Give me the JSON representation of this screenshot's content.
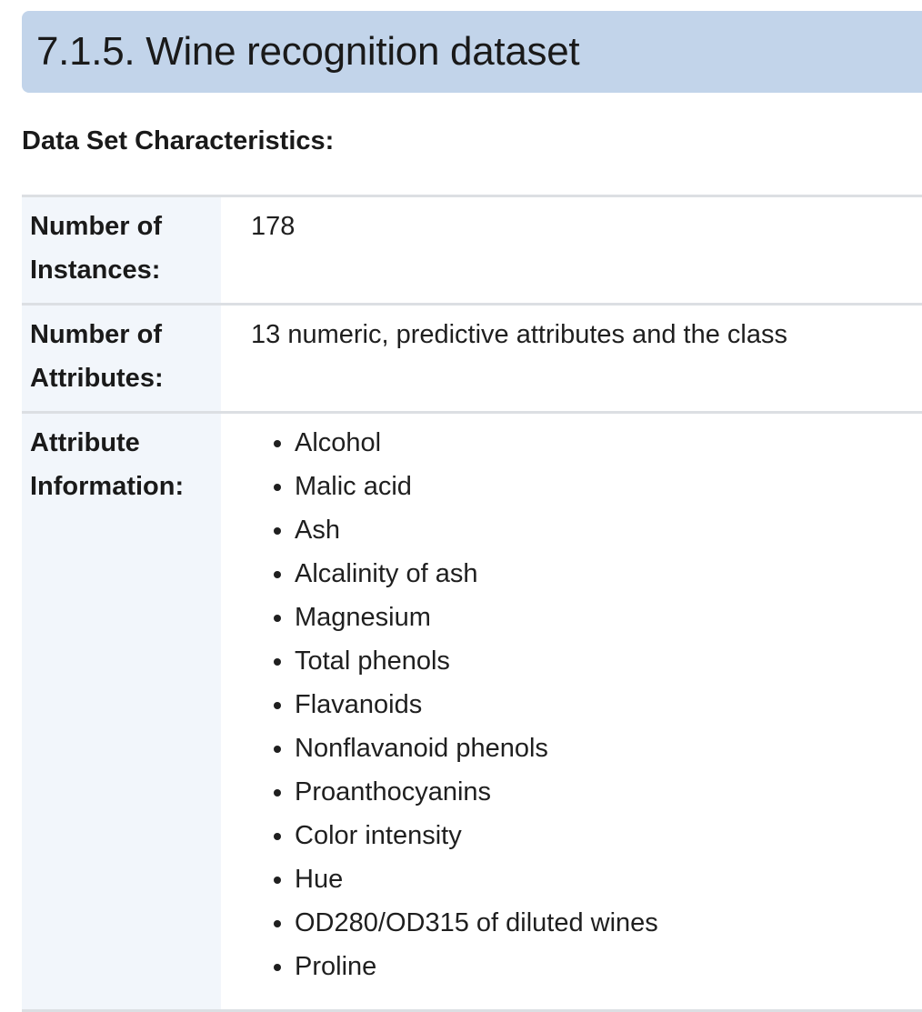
{
  "heading": {
    "title": "7.1.5. Wine recognition dataset"
  },
  "section": {
    "label": "Data Set Characteristics:"
  },
  "fields": {
    "instances": {
      "name": "Number of Instances:",
      "value": "178"
    },
    "attributes": {
      "name": "Number of Attributes:",
      "value": "13 numeric, predictive attributes and the class"
    },
    "attribute_info": {
      "name": "Attribute Information:",
      "items": [
        "Alcohol",
        "Malic acid",
        "Ash",
        "Alcalinity of ash",
        "Magnesium",
        "Total phenols",
        "Flavanoids",
        "Nonflavanoid phenols",
        "Proanthocyanins",
        "Color intensity",
        "Hue",
        "OD280/OD315 of diluted wines",
        "Proline"
      ]
    }
  }
}
